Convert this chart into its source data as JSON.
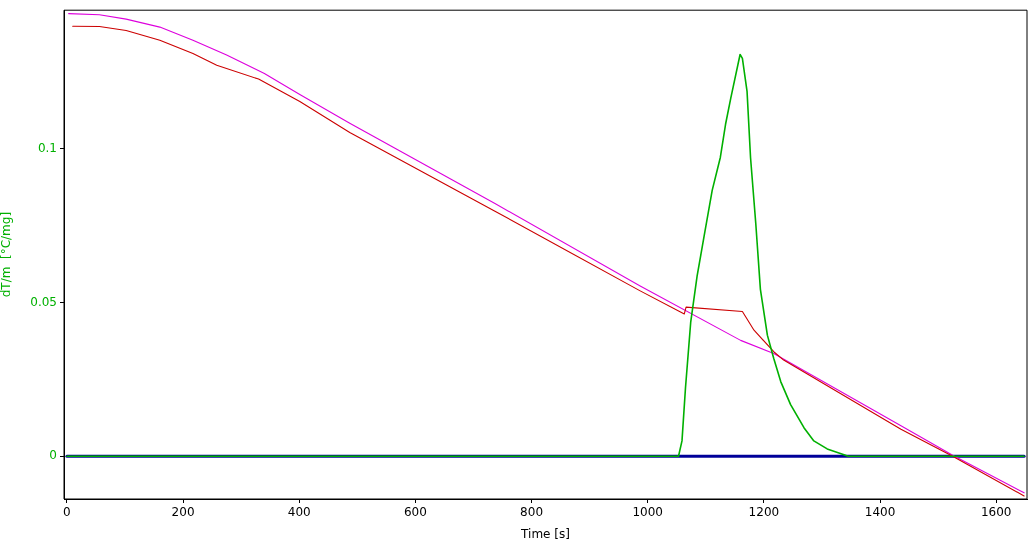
{
  "chart_data": {
    "type": "line",
    "xlabel": "Time [s]",
    "ylabel": "dT/m  [°C/mg]",
    "xlim": [
      -5,
      1653
    ],
    "ylim": [
      -0.0139,
      0.1451
    ],
    "xticks": [
      0,
      200,
      400,
      600,
      800,
      1000,
      1200,
      1400,
      1600
    ],
    "yticks": [
      0,
      0.05,
      0.1
    ],
    "grid": false,
    "legend": false,
    "marker": "none",
    "line_style": "solid",
    "series": [
      {
        "color": "#00b000",
        "x": [
          0,
          1053,
          1059,
          1065,
          1074,
          1085,
          1097,
          1111,
          1125,
          1134,
          1143,
          1159,
          1163,
          1171,
          1177,
          1186,
          1194,
          1206,
          1217,
          1229,
          1246,
          1269,
          1286,
          1309,
          1338,
          1345,
          1648
        ],
        "values": [
          0,
          0,
          0.005,
          0.0222,
          0.0436,
          0.0586,
          0.0715,
          0.0865,
          0.0972,
          0.108,
          0.1165,
          0.1307,
          0.1294,
          0.1187,
          0.0972,
          0.0758,
          0.0543,
          0.0394,
          0.0318,
          0.0243,
          0.0168,
          0.0093,
          0.005,
          0.0024,
          0.0005,
          0,
          0
        ]
      },
      {
        "color": "#000099",
        "x": [
          0,
          1648
        ],
        "values": [
          0,
          0
        ]
      },
      {
        "color": "#cc0000",
        "x": [
          10,
          56,
          102,
          160,
          217,
          258,
          330,
          401,
          487,
          737,
          987,
          1063,
          1066,
          1163,
          1183,
          1217,
          1234,
          1436,
          1525,
          1648
        ],
        "values": [
          0.1399,
          0.1398,
          0.1385,
          0.1353,
          0.131,
          0.1272,
          0.1227,
          0.1154,
          0.1053,
          0.0797,
          0.0538,
          0.0463,
          0.0485,
          0.0471,
          0.041,
          0.034,
          0.0313,
          0.0088,
          0,
          -0.0129
        ]
      },
      {
        "color": "#dd00dd",
        "x": [
          3,
          56,
          102,
          160,
          217,
          275,
          340,
          401,
          487,
          737,
          987,
          1160,
          1217,
          1436,
          1525,
          1648
        ],
        "values": [
          0.144,
          0.1436,
          0.1422,
          0.1396,
          0.1353,
          0.1305,
          0.1245,
          0.1177,
          0.1083,
          0.0822,
          0.0554,
          0.0377,
          0.0334,
          0.0099,
          0.0003,
          -0.0119
        ]
      }
    ]
  }
}
